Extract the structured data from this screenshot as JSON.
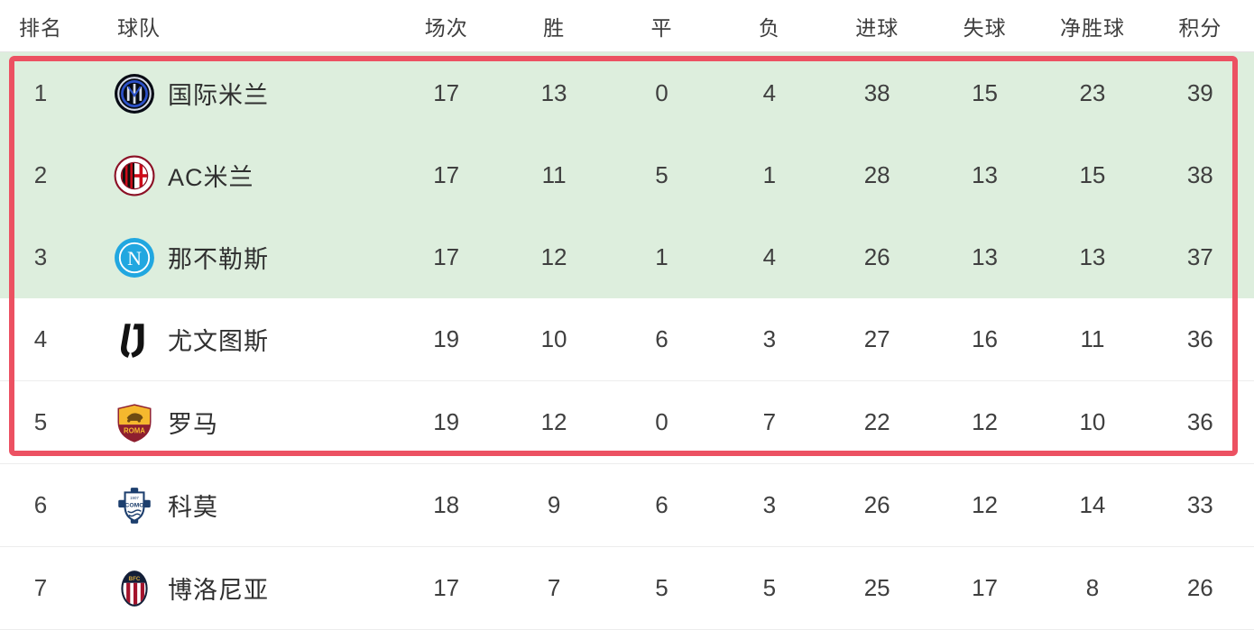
{
  "table": {
    "columns": [
      {
        "key": "rank",
        "label": "排名"
      },
      {
        "key": "team",
        "label": "球队"
      },
      {
        "key": "played",
        "label": "场次"
      },
      {
        "key": "win",
        "label": "胜"
      },
      {
        "key": "draw",
        "label": "平"
      },
      {
        "key": "loss",
        "label": "负"
      },
      {
        "key": "gf",
        "label": "进球"
      },
      {
        "key": "ga",
        "label": "失球"
      },
      {
        "key": "gd",
        "label": "净胜球"
      },
      {
        "key": "pts",
        "label": "积分"
      }
    ],
    "rows": [
      {
        "id": "inter",
        "rank": "1",
        "team": "国际米兰",
        "logo": "inter-milan-logo",
        "played": "17",
        "win": "13",
        "draw": "0",
        "loss": "4",
        "gf": "38",
        "ga": "15",
        "gd": "23",
        "pts": "39",
        "zone": "green",
        "in_red_box": true
      },
      {
        "id": "milan",
        "rank": "2",
        "team": "AC米兰",
        "logo": "ac-milan-logo",
        "played": "17",
        "win": "11",
        "draw": "5",
        "loss": "1",
        "gf": "28",
        "ga": "13",
        "gd": "15",
        "pts": "38",
        "zone": "green",
        "in_red_box": true
      },
      {
        "id": "napoli",
        "rank": "3",
        "team": "那不勒斯",
        "logo": "napoli-logo",
        "played": "17",
        "win": "12",
        "draw": "1",
        "loss": "4",
        "gf": "26",
        "ga": "13",
        "gd": "13",
        "pts": "37",
        "zone": "green",
        "in_red_box": true
      },
      {
        "id": "juventus",
        "rank": "4",
        "team": "尤文图斯",
        "logo": "juventus-logo",
        "played": "19",
        "win": "10",
        "draw": "6",
        "loss": "3",
        "gf": "27",
        "ga": "16",
        "gd": "11",
        "pts": "36",
        "zone": "white",
        "in_red_box": true
      },
      {
        "id": "roma",
        "rank": "5",
        "team": "罗马",
        "logo": "roma-logo",
        "played": "19",
        "win": "12",
        "draw": "0",
        "loss": "7",
        "gf": "22",
        "ga": "12",
        "gd": "10",
        "pts": "36",
        "zone": "white",
        "in_red_box": true
      },
      {
        "id": "como",
        "rank": "6",
        "team": "科莫",
        "logo": "como-logo",
        "played": "18",
        "win": "9",
        "draw": "6",
        "loss": "3",
        "gf": "26",
        "ga": "12",
        "gd": "14",
        "pts": "33",
        "zone": "white",
        "in_red_box": false
      },
      {
        "id": "bologna",
        "rank": "7",
        "team": "博洛尼亚",
        "logo": "bologna-logo",
        "played": "17",
        "win": "7",
        "draw": "5",
        "loss": "5",
        "gf": "25",
        "ga": "17",
        "gd": "8",
        "pts": "26",
        "zone": "white",
        "in_red_box": false
      }
    ]
  },
  "colors": {
    "top3_zone_bg": "#ddeedd",
    "red_highlight_border": "#ec5162",
    "row_divider": "#ededed",
    "header_text": "#3d3d3d",
    "cell_text": "#3f3f3f"
  }
}
